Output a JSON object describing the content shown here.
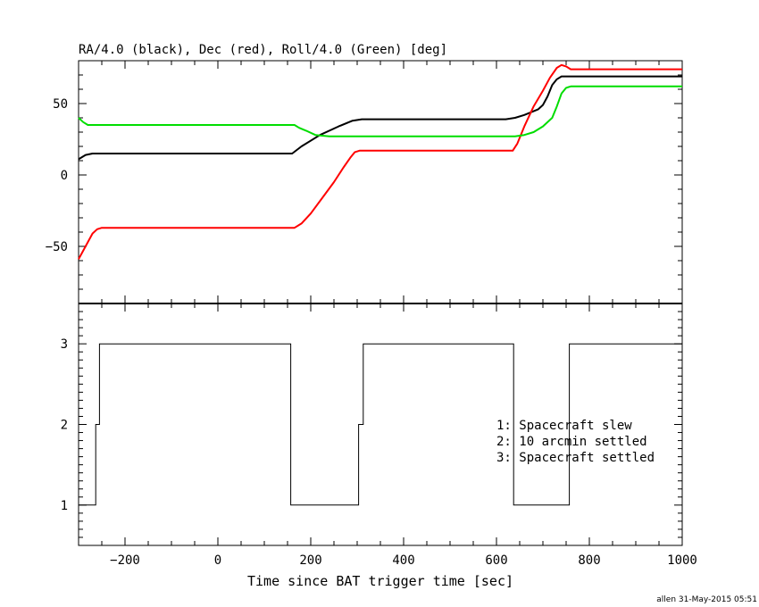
{
  "chart_data": [
    {
      "type": "line",
      "title": "RA/4.0 (black), Dec (red), Roll/4.0 (Green) [deg]",
      "xlabel": "",
      "ylabel": "",
      "xlim": [
        -300,
        1000
      ],
      "ylim": [
        -90,
        80
      ],
      "yticks": [
        -50,
        0,
        50
      ],
      "grid": false,
      "series": [
        {
          "color": "#000000",
          "points": [
            [
              -300,
              11
            ],
            [
              -285,
              14
            ],
            [
              -270,
              15
            ],
            [
              -255,
              15
            ],
            [
              160,
              15
            ],
            [
              180,
              20
            ],
            [
              220,
              28
            ],
            [
              260,
              34
            ],
            [
              290,
              38
            ],
            [
              310,
              39
            ],
            [
              330,
              39
            ],
            [
              620,
              39
            ],
            [
              640,
              40
            ],
            [
              660,
              42
            ],
            [
              690,
              46
            ],
            [
              700,
              49
            ],
            [
              710,
              55
            ],
            [
              720,
              63
            ],
            [
              730,
              67
            ],
            [
              740,
              69
            ],
            [
              760,
              69
            ],
            [
              1000,
              69
            ]
          ]
        },
        {
          "color": "#ff0000",
          "points": [
            [
              -300,
              -59
            ],
            [
              -285,
              -50
            ],
            [
              -270,
              -41
            ],
            [
              -260,
              -38
            ],
            [
              -250,
              -37
            ],
            [
              165,
              -37
            ],
            [
              180,
              -34
            ],
            [
              200,
              -27
            ],
            [
              225,
              -16
            ],
            [
              250,
              -5
            ],
            [
              270,
              5
            ],
            [
              285,
              12
            ],
            [
              295,
              16
            ],
            [
              305,
              17
            ],
            [
              635,
              17
            ],
            [
              645,
              22
            ],
            [
              660,
              34
            ],
            [
              680,
              48
            ],
            [
              700,
              59
            ],
            [
              715,
              68
            ],
            [
              730,
              75
            ],
            [
              740,
              77
            ],
            [
              750,
              76
            ],
            [
              760,
              74
            ],
            [
              1000,
              74
            ]
          ]
        },
        {
          "color": "#00dd00",
          "points": [
            [
              -300,
              40
            ],
            [
              -290,
              37
            ],
            [
              -280,
              35
            ],
            [
              -270,
              35
            ],
            [
              165,
              35
            ],
            [
              175,
              33
            ],
            [
              190,
              31
            ],
            [
              210,
              28
            ],
            [
              240,
              27
            ],
            [
              260,
              27
            ],
            [
              640,
              27
            ],
            [
              660,
              28
            ],
            [
              680,
              30
            ],
            [
              700,
              34
            ],
            [
              720,
              40
            ],
            [
              730,
              48
            ],
            [
              740,
              57
            ],
            [
              750,
              61
            ],
            [
              760,
              62
            ],
            [
              1000,
              62
            ]
          ]
        }
      ]
    },
    {
      "type": "line",
      "title": "",
      "xlabel": "Time since BAT trigger time [sec]",
      "ylabel": "",
      "xlim": [
        -300,
        1000
      ],
      "ylim": [
        0.5,
        3.5
      ],
      "yticks": [
        1,
        2,
        3
      ],
      "xticks": [
        -200,
        0,
        200,
        400,
        600,
        800,
        1000
      ],
      "grid": false,
      "series": [
        {
          "color": "#000000",
          "steps": [
            [
              -300,
              1
            ],
            [
              -263,
              2
            ],
            [
              -255,
              3
            ],
            [
              157,
              1
            ],
            [
              303,
              2
            ],
            [
              313,
              3
            ],
            [
              637,
              1
            ],
            [
              757,
              3
            ],
            [
              1000,
              3
            ]
          ]
        }
      ],
      "legend": {
        "placement": "lower-right",
        "entries": [
          "1: Spacecraft slew",
          "2: 10 arcmin settled",
          "3: Spacecraft settled"
        ]
      }
    }
  ],
  "footer": "allen 31-May-2015 05:51"
}
